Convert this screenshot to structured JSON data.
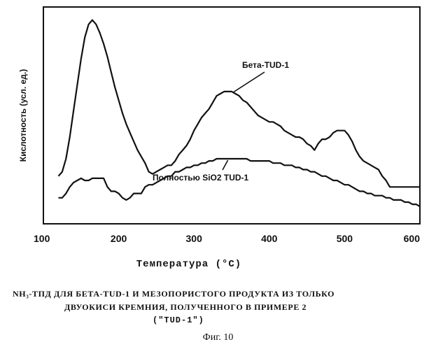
{
  "chart_data": {
    "type": "line",
    "title": "",
    "xlabel": "Температура (°C)",
    "ylabel": "Кислотность (усл. ед.)",
    "xlim": [
      100,
      600
    ],
    "ylim": [
      0,
      100
    ],
    "xticks": [
      "100",
      "200",
      "300",
      "400",
      "500",
      "600"
    ],
    "grid": false,
    "series": [
      {
        "name": "Бета-TUD-1",
        "color": "#111111",
        "x": [
          120,
          125,
          130,
          135,
          140,
          145,
          150,
          155,
          160,
          165,
          170,
          175,
          180,
          185,
          190,
          195,
          200,
          205,
          210,
          215,
          220,
          225,
          230,
          235,
          240,
          245,
          250,
          255,
          260,
          265,
          270,
          275,
          280,
          285,
          290,
          295,
          300,
          305,
          310,
          315,
          320,
          325,
          330,
          335,
          340,
          345,
          350,
          355,
          360,
          365,
          370,
          375,
          380,
          385,
          390,
          395,
          400,
          405,
          410,
          415,
          420,
          425,
          430,
          435,
          440,
          445,
          450,
          455,
          460,
          465,
          470,
          475,
          480,
          485,
          490,
          495,
          500,
          505,
          510,
          515,
          520,
          525,
          530,
          535,
          540,
          545,
          550,
          555,
          560,
          565,
          570,
          575,
          580,
          585,
          590,
          595,
          600
        ],
        "y": [
          22,
          24,
          30,
          40,
          52,
          64,
          76,
          86,
          92,
          94,
          92,
          88,
          83,
          77,
          70,
          63,
          57,
          51,
          46,
          42,
          38,
          34,
          31,
          28,
          24,
          23,
          24,
          25,
          26,
          27,
          27,
          29,
          32,
          34,
          36,
          39,
          43,
          46,
          49,
          51,
          53,
          56,
          59,
          60,
          61,
          61,
          61,
          60,
          59,
          57,
          56,
          54,
          52,
          50,
          49,
          48,
          47,
          47,
          46,
          45,
          43,
          42,
          41,
          40,
          40,
          39,
          37,
          36,
          34,
          37,
          39,
          39,
          40,
          42,
          43,
          43,
          43,
          41,
          38,
          34,
          31,
          29,
          28,
          27,
          26,
          25,
          22,
          20,
          17,
          17,
          17,
          17,
          17,
          17,
          17,
          17,
          17
        ]
      },
      {
        "name": "Полностью SiO2 TUD-1",
        "color": "#111111",
        "x": [
          120,
          125,
          130,
          135,
          140,
          145,
          150,
          155,
          160,
          165,
          170,
          175,
          180,
          185,
          190,
          195,
          200,
          205,
          210,
          215,
          220,
          225,
          230,
          235,
          240,
          245,
          250,
          255,
          260,
          265,
          270,
          275,
          280,
          285,
          290,
          295,
          300,
          305,
          310,
          315,
          320,
          325,
          330,
          335,
          340,
          345,
          350,
          355,
          360,
          365,
          370,
          375,
          380,
          385,
          390,
          395,
          400,
          405,
          410,
          415,
          420,
          425,
          430,
          435,
          440,
          445,
          450,
          455,
          460,
          465,
          470,
          475,
          480,
          485,
          490,
          495,
          500,
          505,
          510,
          515,
          520,
          525,
          530,
          535,
          540,
          545,
          550,
          555,
          560,
          565,
          570,
          575,
          580,
          585,
          590,
          595,
          600
        ],
        "y": [
          12,
          12,
          14,
          17,
          19,
          20,
          21,
          20,
          20,
          21,
          21,
          21,
          21,
          17,
          15,
          15,
          14,
          12,
          11,
          12,
          14,
          14,
          14,
          17,
          18,
          18,
          19,
          20,
          21,
          22,
          22,
          24,
          24,
          25,
          26,
          26,
          27,
          27,
          28,
          28,
          29,
          29,
          30,
          30,
          30,
          30,
          30,
          30,
          30,
          30,
          30,
          29,
          29,
          29,
          29,
          29,
          29,
          28,
          28,
          28,
          27,
          27,
          27,
          26,
          26,
          25,
          25,
          24,
          24,
          23,
          22,
          22,
          21,
          20,
          20,
          19,
          18,
          18,
          17,
          16,
          15,
          15,
          14,
          14,
          13,
          13,
          13,
          12,
          12,
          11,
          11,
          11,
          10,
          10,
          9,
          9,
          8
        ]
      }
    ],
    "annotations": [
      {
        "text": "Бета-TUD-1",
        "series": 0,
        "x": 352,
        "y": 60
      },
      {
        "text": "Полностью SiO2 TUD-1",
        "series": 1,
        "x": 345,
        "y": 30
      }
    ]
  },
  "caption": {
    "line1": "NH₃-ТПД ДЛЯ БЕТА-TUD-1 И МЕЗОПОРИСТОГО ПРОДУКТА ИЗ ТОЛЬКО",
    "line2": "ДВУОКИСИ КРЕМНИЯ, ПОЛУЧЕННОГО В ПРИМЕРЕ 2",
    "line3": "(\"TUD-1\")"
  },
  "figure_label": "Фиг. 10"
}
